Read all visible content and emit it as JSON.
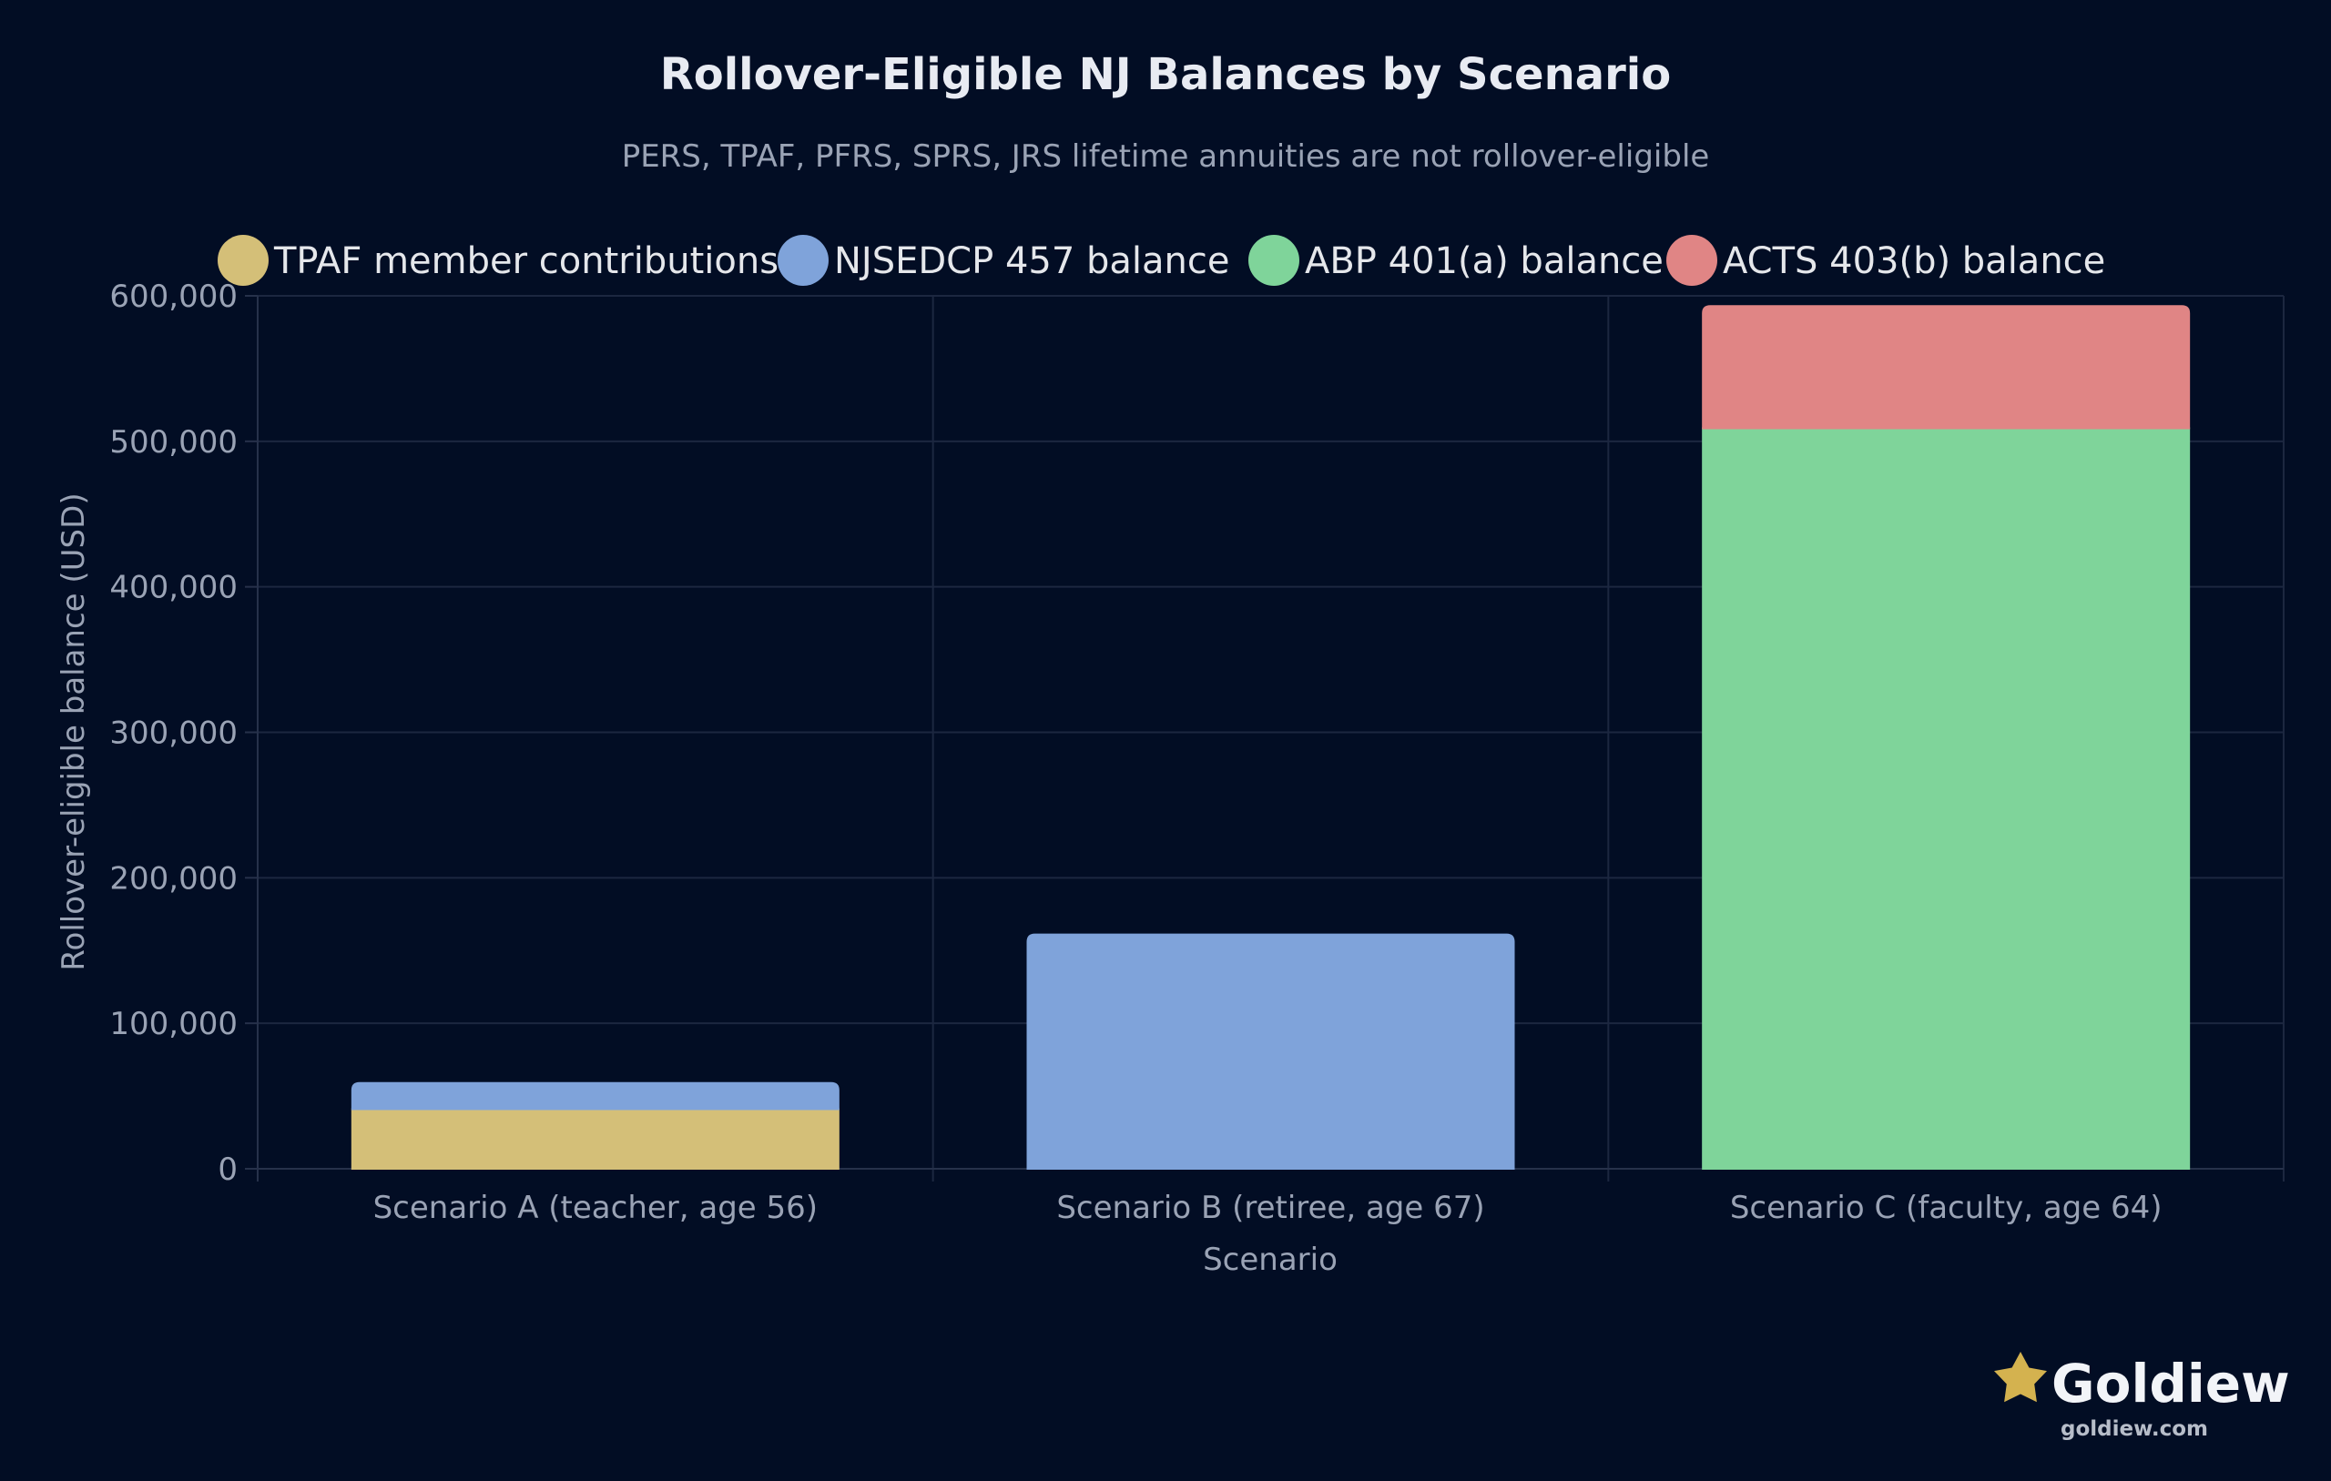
{
  "brand": {
    "name": "Goldiew",
    "url": "goldiew.com",
    "star_color": "#d4b24f"
  },
  "chart_data": {
    "type": "bar",
    "stacked": true,
    "title": "Rollover-Eligible NJ Balances by Scenario",
    "subtitle": "PERS, TPAF, PFRS, SPRS, JRS lifetime annuities are not rollover-eligible",
    "xlabel": "Scenario",
    "ylabel": "Rollover-eligible balance (USD)",
    "ylim": [
      0,
      600000
    ],
    "yticks": [
      0,
      100000,
      200000,
      300000,
      400000,
      500000,
      600000
    ],
    "ytick_labels": [
      "0",
      "100,000",
      "200,000",
      "300,000",
      "400,000",
      "500,000",
      "600,000"
    ],
    "grid": true,
    "legend_position": "top",
    "categories": [
      "Scenario A (teacher, age 56)",
      "Scenario B (retiree, age 67)",
      "Scenario C (faculty, age 64)"
    ],
    "series": [
      {
        "name": "TPAF member contributions",
        "color": "#d4bf78",
        "values": [
          41000,
          0,
          0
        ]
      },
      {
        "name": "NJSEDCP 457 balance",
        "color": "#7fa3da",
        "values": [
          18000,
          161000,
          0
        ]
      },
      {
        "name": "ABP 401(a) balance",
        "color": "#7fd49a",
        "values": [
          0,
          0,
          509000
        ]
      },
      {
        "name": "ACTS 403(b) balance",
        "color": "#e08585",
        "values": [
          0,
          0,
          84000
        ]
      }
    ]
  }
}
